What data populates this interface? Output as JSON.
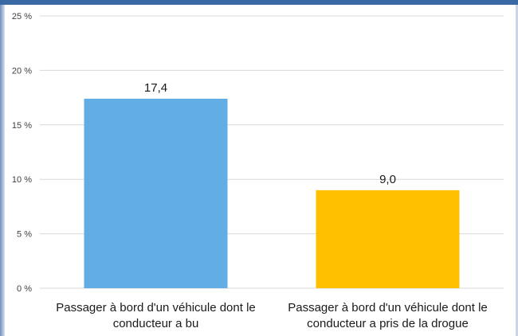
{
  "chart_data": {
    "type": "bar",
    "categories": [
      [
        "Passager à bord d'un véhicule dont le",
        "conducteur a bu"
      ],
      [
        "Passager à bord d'un véhicule dont le",
        "conducteur a pris de la drogue"
      ]
    ],
    "values": [
      17.4,
      9.0
    ],
    "data_labels": [
      "17,4",
      "9,0"
    ],
    "colors": [
      "#62ade3",
      "#ffc000"
    ],
    "ylim": [
      0,
      25
    ],
    "yticks": [
      0,
      5,
      10,
      15,
      20,
      25
    ],
    "ytick_labels": [
      "0 %",
      "5 %",
      "10 %",
      "15 %",
      "20 %",
      "25 %"
    ],
    "grid": true,
    "title": "",
    "xlabel": "",
    "ylabel": ""
  }
}
